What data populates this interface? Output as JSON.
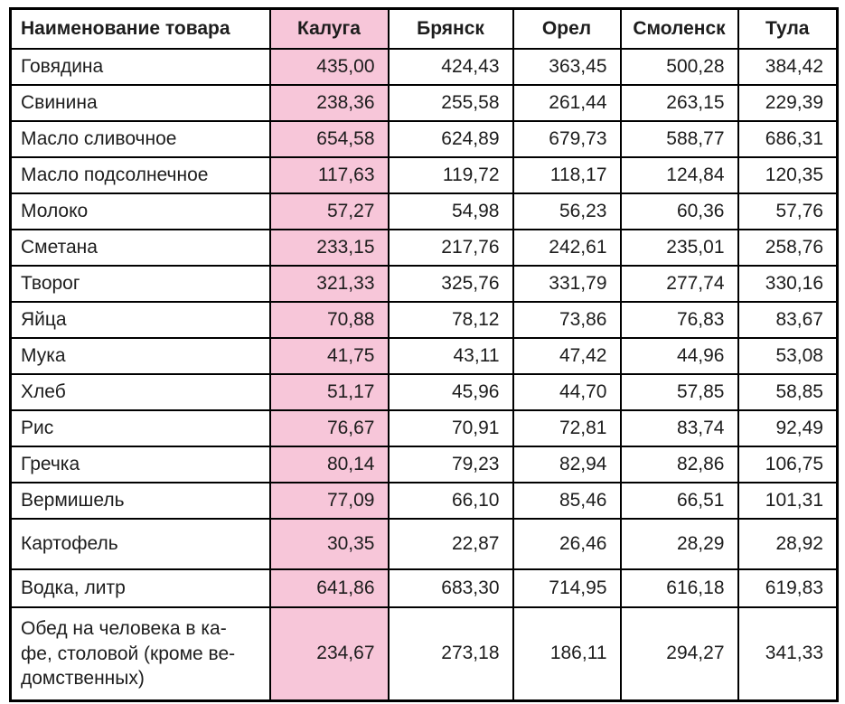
{
  "chart_data": {
    "type": "table",
    "title": "",
    "columns": [
      "Наименование товара",
      "Калуга",
      "Брянск",
      "Орел",
      "Смоленск",
      "Тула"
    ],
    "highlighted_column": "Калуга",
    "highlight_color": "#f7c6d9",
    "border_color": "#000000",
    "rows": [
      {
        "product": "Говядина",
        "values": [
          "435,00",
          "424,43",
          "363,45",
          "500,28",
          "384,42"
        ]
      },
      {
        "product": "Свинина",
        "values": [
          "238,36",
          "255,58",
          "261,44",
          "263,15",
          "229,39"
        ]
      },
      {
        "product": "Масло сливочное",
        "values": [
          "654,58",
          "624,89",
          "679,73",
          "588,77",
          "686,31"
        ]
      },
      {
        "product": "Масло подсолнечное",
        "values": [
          "117,63",
          "119,72",
          "118,17",
          "124,84",
          "120,35"
        ]
      },
      {
        "product": "Молоко",
        "values": [
          "57,27",
          "54,98",
          "56,23",
          "60,36",
          "57,76"
        ]
      },
      {
        "product": "Сметана",
        "values": [
          "233,15",
          "217,76",
          "242,61",
          "235,01",
          "258,76"
        ]
      },
      {
        "product": "Творог",
        "values": [
          "321,33",
          "325,76",
          "331,79",
          "277,74",
          "330,16"
        ]
      },
      {
        "product": "Яйца",
        "values": [
          "70,88",
          "78,12",
          "73,86",
          "76,83",
          "83,67"
        ]
      },
      {
        "product": "Мука",
        "values": [
          "41,75",
          "43,11",
          "47,42",
          "44,96",
          "53,08"
        ]
      },
      {
        "product": "Хлеб",
        "values": [
          "51,17",
          "45,96",
          "44,70",
          "57,85",
          "58,85"
        ]
      },
      {
        "product": "Рис",
        "values": [
          "76,67",
          "70,91",
          "72,81",
          "83,74",
          "92,49"
        ]
      },
      {
        "product": "Гречка",
        "values": [
          "80,14",
          "79,23",
          "82,94",
          "82,86",
          "106,75"
        ]
      },
      {
        "product": "Вермишель",
        "values": [
          "77,09",
          "66,10",
          "85,46",
          "66,51",
          "101,31"
        ]
      },
      {
        "product": "Картофель",
        "values": [
          "30,35",
          "22,87",
          "26,46",
          "28,29",
          "28,92"
        ]
      },
      {
        "product": "Водка, литр",
        "values": [
          "641,86",
          "683,30",
          "714,95",
          "616,18",
          "619,83"
        ]
      },
      {
        "product": "Обед на человека в ка-\nфе, столовой (кроме ве-\nдомственных)",
        "values": [
          "234,67",
          "273,18",
          "186,11",
          "294,27",
          "341,33"
        ]
      }
    ]
  }
}
